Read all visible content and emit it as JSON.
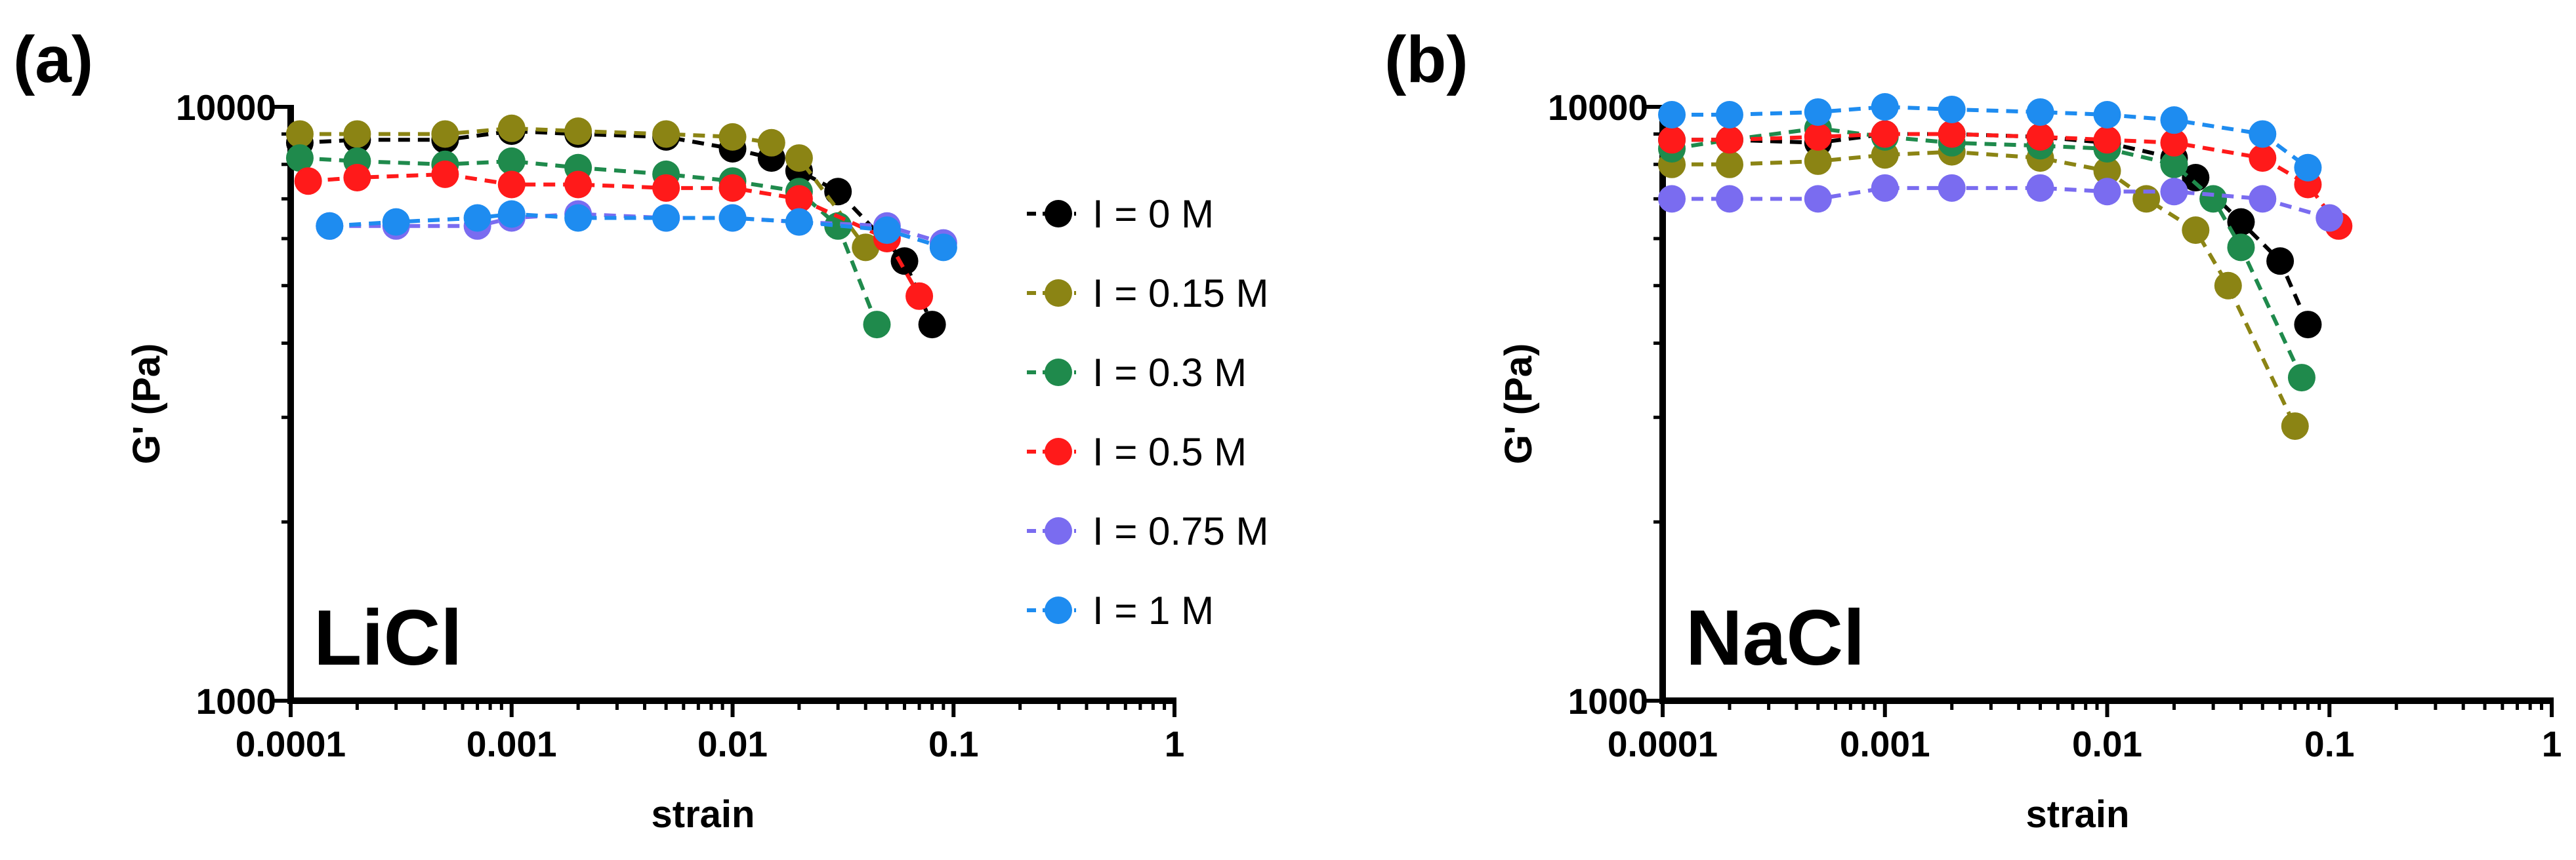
{
  "chart_data": [
    {
      "type": "line",
      "panel_label": "(a)",
      "annotation": "LiCl",
      "xlabel": "strain",
      "ylabel": "G' (Pa)",
      "xscale": "log",
      "yscale": "log",
      "xlim": [
        0.0001,
        1
      ],
      "ylim": [
        1000,
        10000
      ],
      "xticks": [
        0.0001,
        0.001,
        0.01,
        0.1,
        1
      ],
      "yticks": [
        1000,
        10000
      ],
      "legend": true,
      "legend_position": "right",
      "series": [
        {
          "name": "I = 0 M",
          "color": "#000000",
          "x": [
            0.00011,
            0.0002,
            0.0005,
            0.001,
            0.002,
            0.005,
            0.01,
            0.015,
            0.02,
            0.03,
            0.06,
            0.08
          ],
          "values": [
            8700,
            8800,
            8800,
            9100,
            9000,
            8900,
            8500,
            8200,
            7800,
            7200,
            5500,
            4300
          ]
        },
        {
          "name": "I = 0.15 M",
          "color": "#8b8414",
          "x": [
            0.00011,
            0.0002,
            0.0005,
            0.001,
            0.002,
            0.005,
            0.01,
            0.015,
            0.02,
            0.04
          ],
          "values": [
            9000,
            9000,
            9000,
            9200,
            9100,
            9000,
            8900,
            8700,
            8200,
            5800
          ]
        },
        {
          "name": "I = 0.3 M",
          "color": "#1f8a4c",
          "x": [
            0.00011,
            0.0002,
            0.0005,
            0.001,
            0.002,
            0.005,
            0.01,
            0.02,
            0.03,
            0.045
          ],
          "values": [
            8200,
            8100,
            8000,
            8100,
            7900,
            7700,
            7500,
            7200,
            6300,
            4300
          ]
        },
        {
          "name": "I = 0.5 M",
          "color": "#ff1a1a",
          "x": [
            0.00012,
            0.0002,
            0.0005,
            0.001,
            0.002,
            0.005,
            0.01,
            0.02,
            0.05,
            0.07
          ],
          "values": [
            7500,
            7600,
            7700,
            7400,
            7400,
            7300,
            7300,
            7000,
            6000,
            4800
          ]
        },
        {
          "name": "I = 0.75 M",
          "color": "#7a6cf0",
          "x": [
            0.00015,
            0.0003,
            0.0007,
            0.001,
            0.002,
            0.005,
            0.01,
            0.02,
            0.05,
            0.09
          ],
          "values": [
            6300,
            6300,
            6300,
            6500,
            6600,
            6500,
            6500,
            6400,
            6300,
            5900
          ]
        },
        {
          "name": "I = 1 M",
          "color": "#1e8cf0",
          "x": [
            0.00015,
            0.0003,
            0.0007,
            0.001,
            0.002,
            0.005,
            0.01,
            0.02,
            0.05,
            0.09
          ],
          "values": [
            6300,
            6400,
            6500,
            6600,
            6500,
            6500,
            6500,
            6400,
            6200,
            5800
          ]
        }
      ]
    },
    {
      "type": "line",
      "panel_label": "(b)",
      "annotation": "NaCl",
      "xlabel": "strain",
      "ylabel": "G' (Pa)",
      "xscale": "log",
      "yscale": "log",
      "xlim": [
        0.0001,
        1
      ],
      "ylim": [
        1000,
        10000
      ],
      "xticks": [
        0.0001,
        0.001,
        0.01,
        0.1,
        1
      ],
      "yticks": [
        1000,
        10000
      ],
      "legend": false,
      "series": [
        {
          "color": "#000000",
          "x": [
            0.00011,
            0.0002,
            0.0005,
            0.001,
            0.002,
            0.005,
            0.01,
            0.02,
            0.025,
            0.04,
            0.06,
            0.08
          ],
          "values": [
            8800,
            8800,
            8700,
            9000,
            9000,
            8900,
            8700,
            8200,
            7600,
            6400,
            5500,
            4300
          ]
        },
        {
          "color": "#8b8414",
          "x": [
            0.00011,
            0.0002,
            0.0005,
            0.001,
            0.002,
            0.005,
            0.01,
            0.015,
            0.025,
            0.035,
            0.07
          ],
          "values": [
            8000,
            8000,
            8100,
            8300,
            8400,
            8200,
            7800,
            7000,
            6200,
            5000,
            2900
          ]
        },
        {
          "color": "#1f8a4c",
          "x": [
            0.00011,
            0.0002,
            0.0005,
            0.001,
            0.002,
            0.005,
            0.01,
            0.02,
            0.03,
            0.04,
            0.075
          ],
          "values": [
            8500,
            8800,
            9200,
            8900,
            8700,
            8600,
            8500,
            8000,
            7000,
            5800,
            3500
          ]
        },
        {
          "color": "#ff1a1a",
          "x": [
            0.00011,
            0.0002,
            0.0005,
            0.001,
            0.002,
            0.005,
            0.01,
            0.02,
            0.05,
            0.08,
            0.11
          ],
          "values": [
            8800,
            8800,
            8900,
            9000,
            9000,
            8900,
            8800,
            8700,
            8200,
            7400,
            6300
          ]
        },
        {
          "color": "#7a6cf0",
          "x": [
            0.00011,
            0.0002,
            0.0005,
            0.001,
            0.002,
            0.005,
            0.01,
            0.02,
            0.05,
            0.1
          ],
          "values": [
            7000,
            7000,
            7000,
            7300,
            7300,
            7300,
            7200,
            7200,
            7000,
            6500
          ]
        },
        {
          "color": "#1e8cf0",
          "x": [
            0.00011,
            0.0002,
            0.0005,
            0.001,
            0.002,
            0.005,
            0.01,
            0.02,
            0.05,
            0.08
          ],
          "values": [
            9700,
            9700,
            9800,
            10000,
            9900,
            9800,
            9700,
            9500,
            9000,
            7900
          ]
        }
      ]
    }
  ]
}
